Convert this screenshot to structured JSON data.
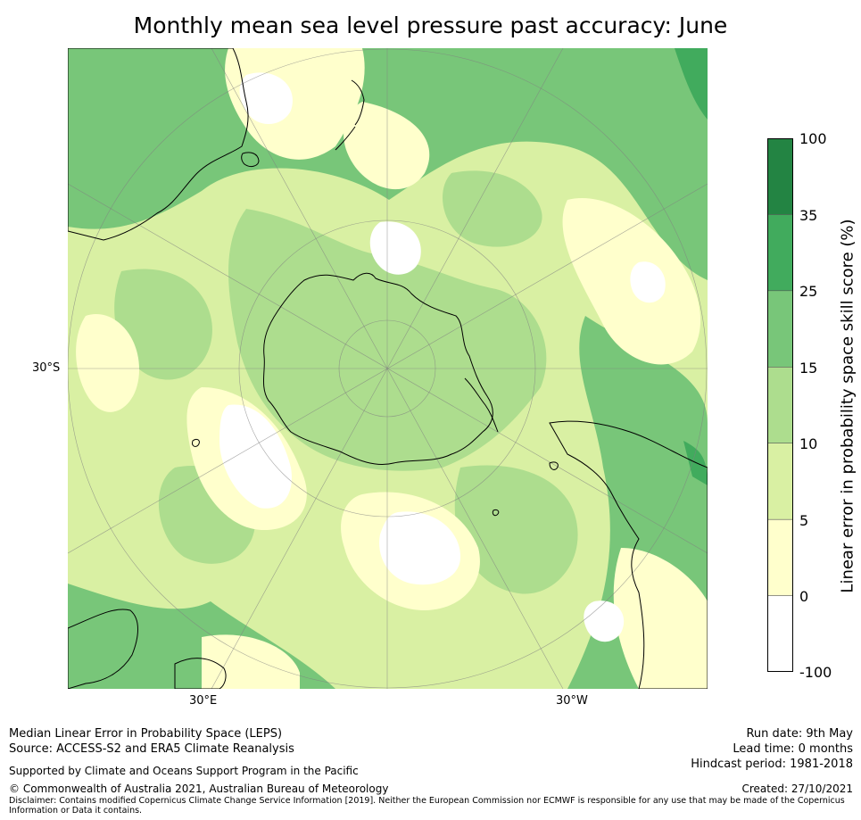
{
  "title": "Monthly mean sea level pressure past accuracy: June",
  "map": {
    "projection": "south-polar-stereographic",
    "lat_label": "30°S",
    "lon_labels": [
      "30°E",
      "30°W"
    ],
    "land_outline_color": "#000000",
    "gridline_color": "#808080"
  },
  "colorbar": {
    "label": "Linear error in probability space skill score (%)",
    "ticks": [
      "100",
      "35",
      "25",
      "15",
      "10",
      "5",
      "0",
      "-100"
    ],
    "bins": [
      {
        "from": 35,
        "to": 100,
        "color": "#238443"
      },
      {
        "from": 25,
        "to": 35,
        "color": "#41ab5d"
      },
      {
        "from": 15,
        "to": 25,
        "color": "#78c679"
      },
      {
        "from": 10,
        "to": 15,
        "color": "#addd8e"
      },
      {
        "from": 5,
        "to": 10,
        "color": "#d9f0a3"
      },
      {
        "from": 0,
        "to": 5,
        "color": "#ffffcc"
      },
      {
        "from": -100,
        "to": 0,
        "color": "#ffffff"
      }
    ]
  },
  "footer": {
    "left_line1": "Median Linear Error in Probability Space (LEPS)",
    "left_line2": "Source: ACCESS-S2 and ERA5 Climate Reanalysis",
    "support": "Supported by Climate and Oceans Support Program in the Pacific",
    "copyright": "© Commonwealth of Australia 2021, Australian Bureau of Meteorology",
    "disclaimer_line1": "Disclaimer: Contains modified Copernicus Climate Change Service Information [2019]. Neither the European Commission nor ECMWF is responsible for any use that may be made of the Copernicus",
    "disclaimer_line2": "Information or Data it contains.",
    "run_date": "Run date: 9th May",
    "lead_time": "Lead time: 0 months",
    "hindcast": "Hindcast period: 1981-2018",
    "created": "Created: 27/10/2021"
  }
}
